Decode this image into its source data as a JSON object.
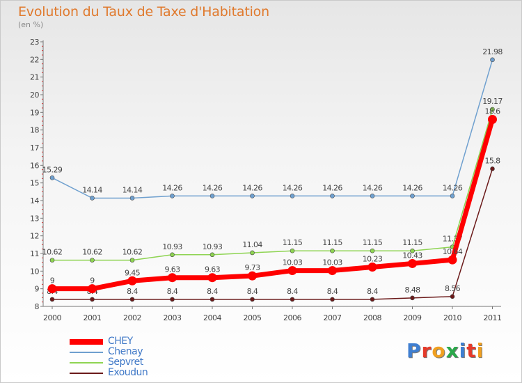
{
  "chart_data": {
    "type": "line",
    "title": "Evolution du Taux de Taxe d'Habitation",
    "subtitle": "(en %)",
    "x": [
      "2000",
      "2001",
      "2002",
      "2003",
      "2004",
      "2005",
      "2006",
      "2007",
      "2008",
      "2009",
      "2010",
      "2011"
    ],
    "ylim": [
      8,
      23
    ],
    "y_ticks": [
      "8",
      "9",
      "10",
      "11",
      "12",
      "13",
      "14",
      "15",
      "16",
      "17",
      "18",
      "19",
      "20",
      "21",
      "22",
      "23"
    ],
    "grid": false,
    "legend_position": "bottom-left",
    "series": [
      {
        "name": "Exoudun",
        "color": "#6b1a1a",
        "values": [
          8.4,
          8.4,
          8.4,
          8.4,
          8.4,
          8.4,
          8.4,
          8.4,
          8.4,
          8.48,
          8.56,
          15.8
        ],
        "labels": [
          "8.4",
          "8.4",
          "8.4",
          "8.4",
          "8.4",
          "8.4",
          "8.4",
          "8.4",
          "8.4",
          "8.48",
          "8.56",
          "15.8"
        ]
      },
      {
        "name": "Sepvret",
        "color": "#8ed452",
        "values": [
          10.62,
          10.62,
          10.62,
          10.93,
          10.93,
          11.04,
          11.15,
          11.15,
          11.15,
          11.15,
          11.37,
          19.17
        ],
        "labels": [
          "10.62",
          "10.62",
          "10.62",
          "10.93",
          "10.93",
          "11.04",
          "11.15",
          "11.15",
          "11.15",
          "11.15",
          "11.37",
          "19.17"
        ]
      },
      {
        "name": "Chenay",
        "color": "#6fa0cf",
        "values": [
          15.29,
          14.14,
          14.14,
          14.26,
          14.26,
          14.26,
          14.26,
          14.26,
          14.26,
          14.26,
          14.26,
          21.98
        ],
        "labels": [
          "15.29",
          "14.14",
          "14.14",
          "14.26",
          "14.26",
          "14.26",
          "14.26",
          "14.26",
          "14.26",
          "14.26",
          "14.26",
          "21.98"
        ]
      },
      {
        "name": "CHEY",
        "color": "#ff0000",
        "values": [
          9,
          9,
          9.45,
          9.63,
          9.63,
          9.73,
          10.03,
          10.03,
          10.23,
          10.43,
          10.64,
          18.6
        ],
        "labels": [
          "9",
          "9",
          "9.45",
          "9.63",
          "9.63",
          "9.73",
          "10.03",
          "10.03",
          "10.23",
          "10.43",
          "10.64",
          "18.6"
        ]
      }
    ],
    "legend": [
      "CHEY",
      "Chenay",
      "Sepvret",
      "Exoudun"
    ]
  },
  "logo": {
    "letters": [
      "P",
      "r",
      "o",
      "x",
      "i",
      "t",
      "i"
    ],
    "colors": [
      "#3f7fd1",
      "#e53a2a",
      "#f0a020",
      "#2aa84a",
      "#3f7fd1",
      "#e53a2a",
      "#f0a020"
    ]
  }
}
